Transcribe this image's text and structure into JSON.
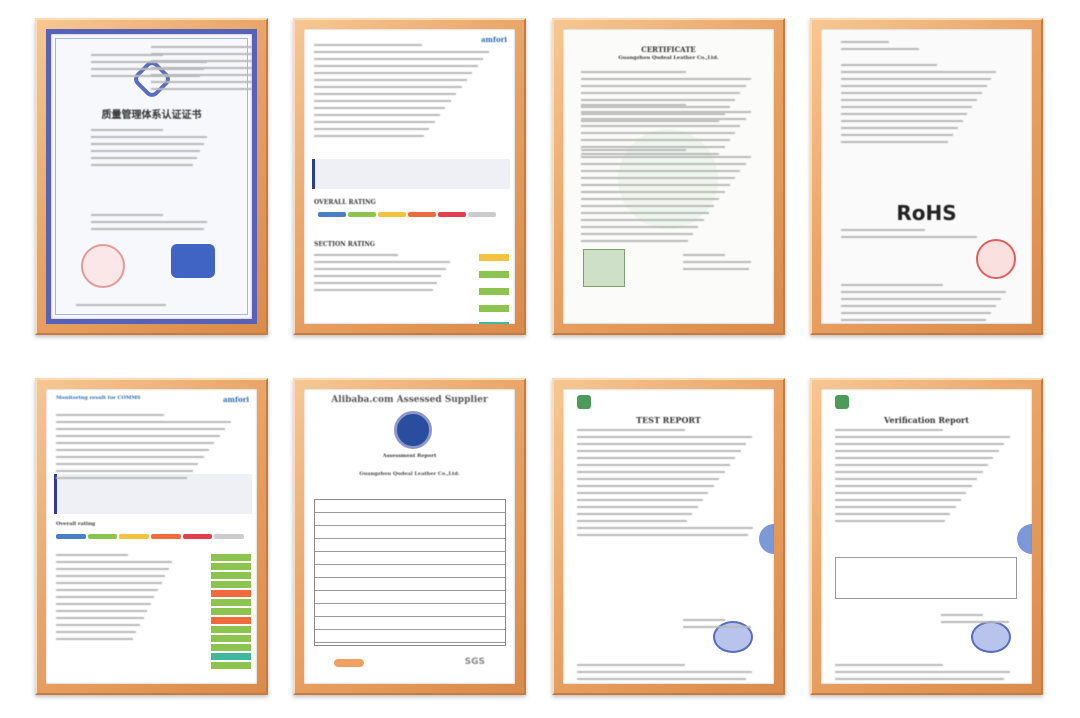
{
  "certificates": [
    {
      "title": "质量管理体系认证证书",
      "type": "quality-system-certificate"
    },
    {
      "title": "OVERALL RATING",
      "subtitle": "SECTION RATING",
      "type": "monitoring-report",
      "brand": "amfori"
    },
    {
      "title": "CERTIFICATE",
      "subtitle": "Guangzhou Qudeal Leather Co.,Ltd.",
      "type": "certificate"
    },
    {
      "title": "RoHS",
      "type": "rohs-certificate"
    },
    {
      "title": "Monitoring result for COMMS",
      "subtitle": "Overall rating",
      "type": "monitoring-report",
      "brand": "amfori"
    },
    {
      "title": "Alibaba.com Assessed Supplier",
      "subtitle": "Assessment Report",
      "company": "Guangzhou Qudeal Leather Co.,Ltd.",
      "mark": "SGS",
      "type": "assessment-report"
    },
    {
      "title": "TEST REPORT",
      "type": "test-report"
    },
    {
      "title": "Verification Report",
      "type": "verification-report"
    }
  ],
  "colors": {
    "frame": "#e9a466",
    "rating": [
      "#4a7fc8",
      "#8dc44f",
      "#f3c340",
      "#ef6a3c",
      "#e23e4f",
      "#cccccc"
    ]
  }
}
